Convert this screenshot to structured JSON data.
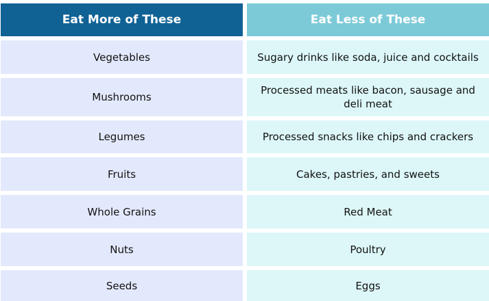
{
  "header": {
    "left": "Eat More of These",
    "right": "Eat Less of These"
  },
  "rows": [
    {
      "more": "Vegetables",
      "less": "Sugary drinks like soda, juice and cocktails"
    },
    {
      "more": "Mushrooms",
      "less": "Processed meats like bacon, sausage and deli meat"
    },
    {
      "more": "Legumes",
      "less": "Processed snacks like chips and crackers"
    },
    {
      "more": "Fruits",
      "less": "Cakes, pastries, and sweets"
    },
    {
      "more": "Whole Grains",
      "less": "Red Meat"
    },
    {
      "more": "Nuts",
      "less": "Poultry"
    },
    {
      "more": "Seeds",
      "less": "Eggs"
    }
  ],
  "colors": {
    "header_left": "#106295",
    "header_right": "#7ccad8",
    "row_left": "#e3e9fc",
    "row_right": "#ddf7f8"
  }
}
